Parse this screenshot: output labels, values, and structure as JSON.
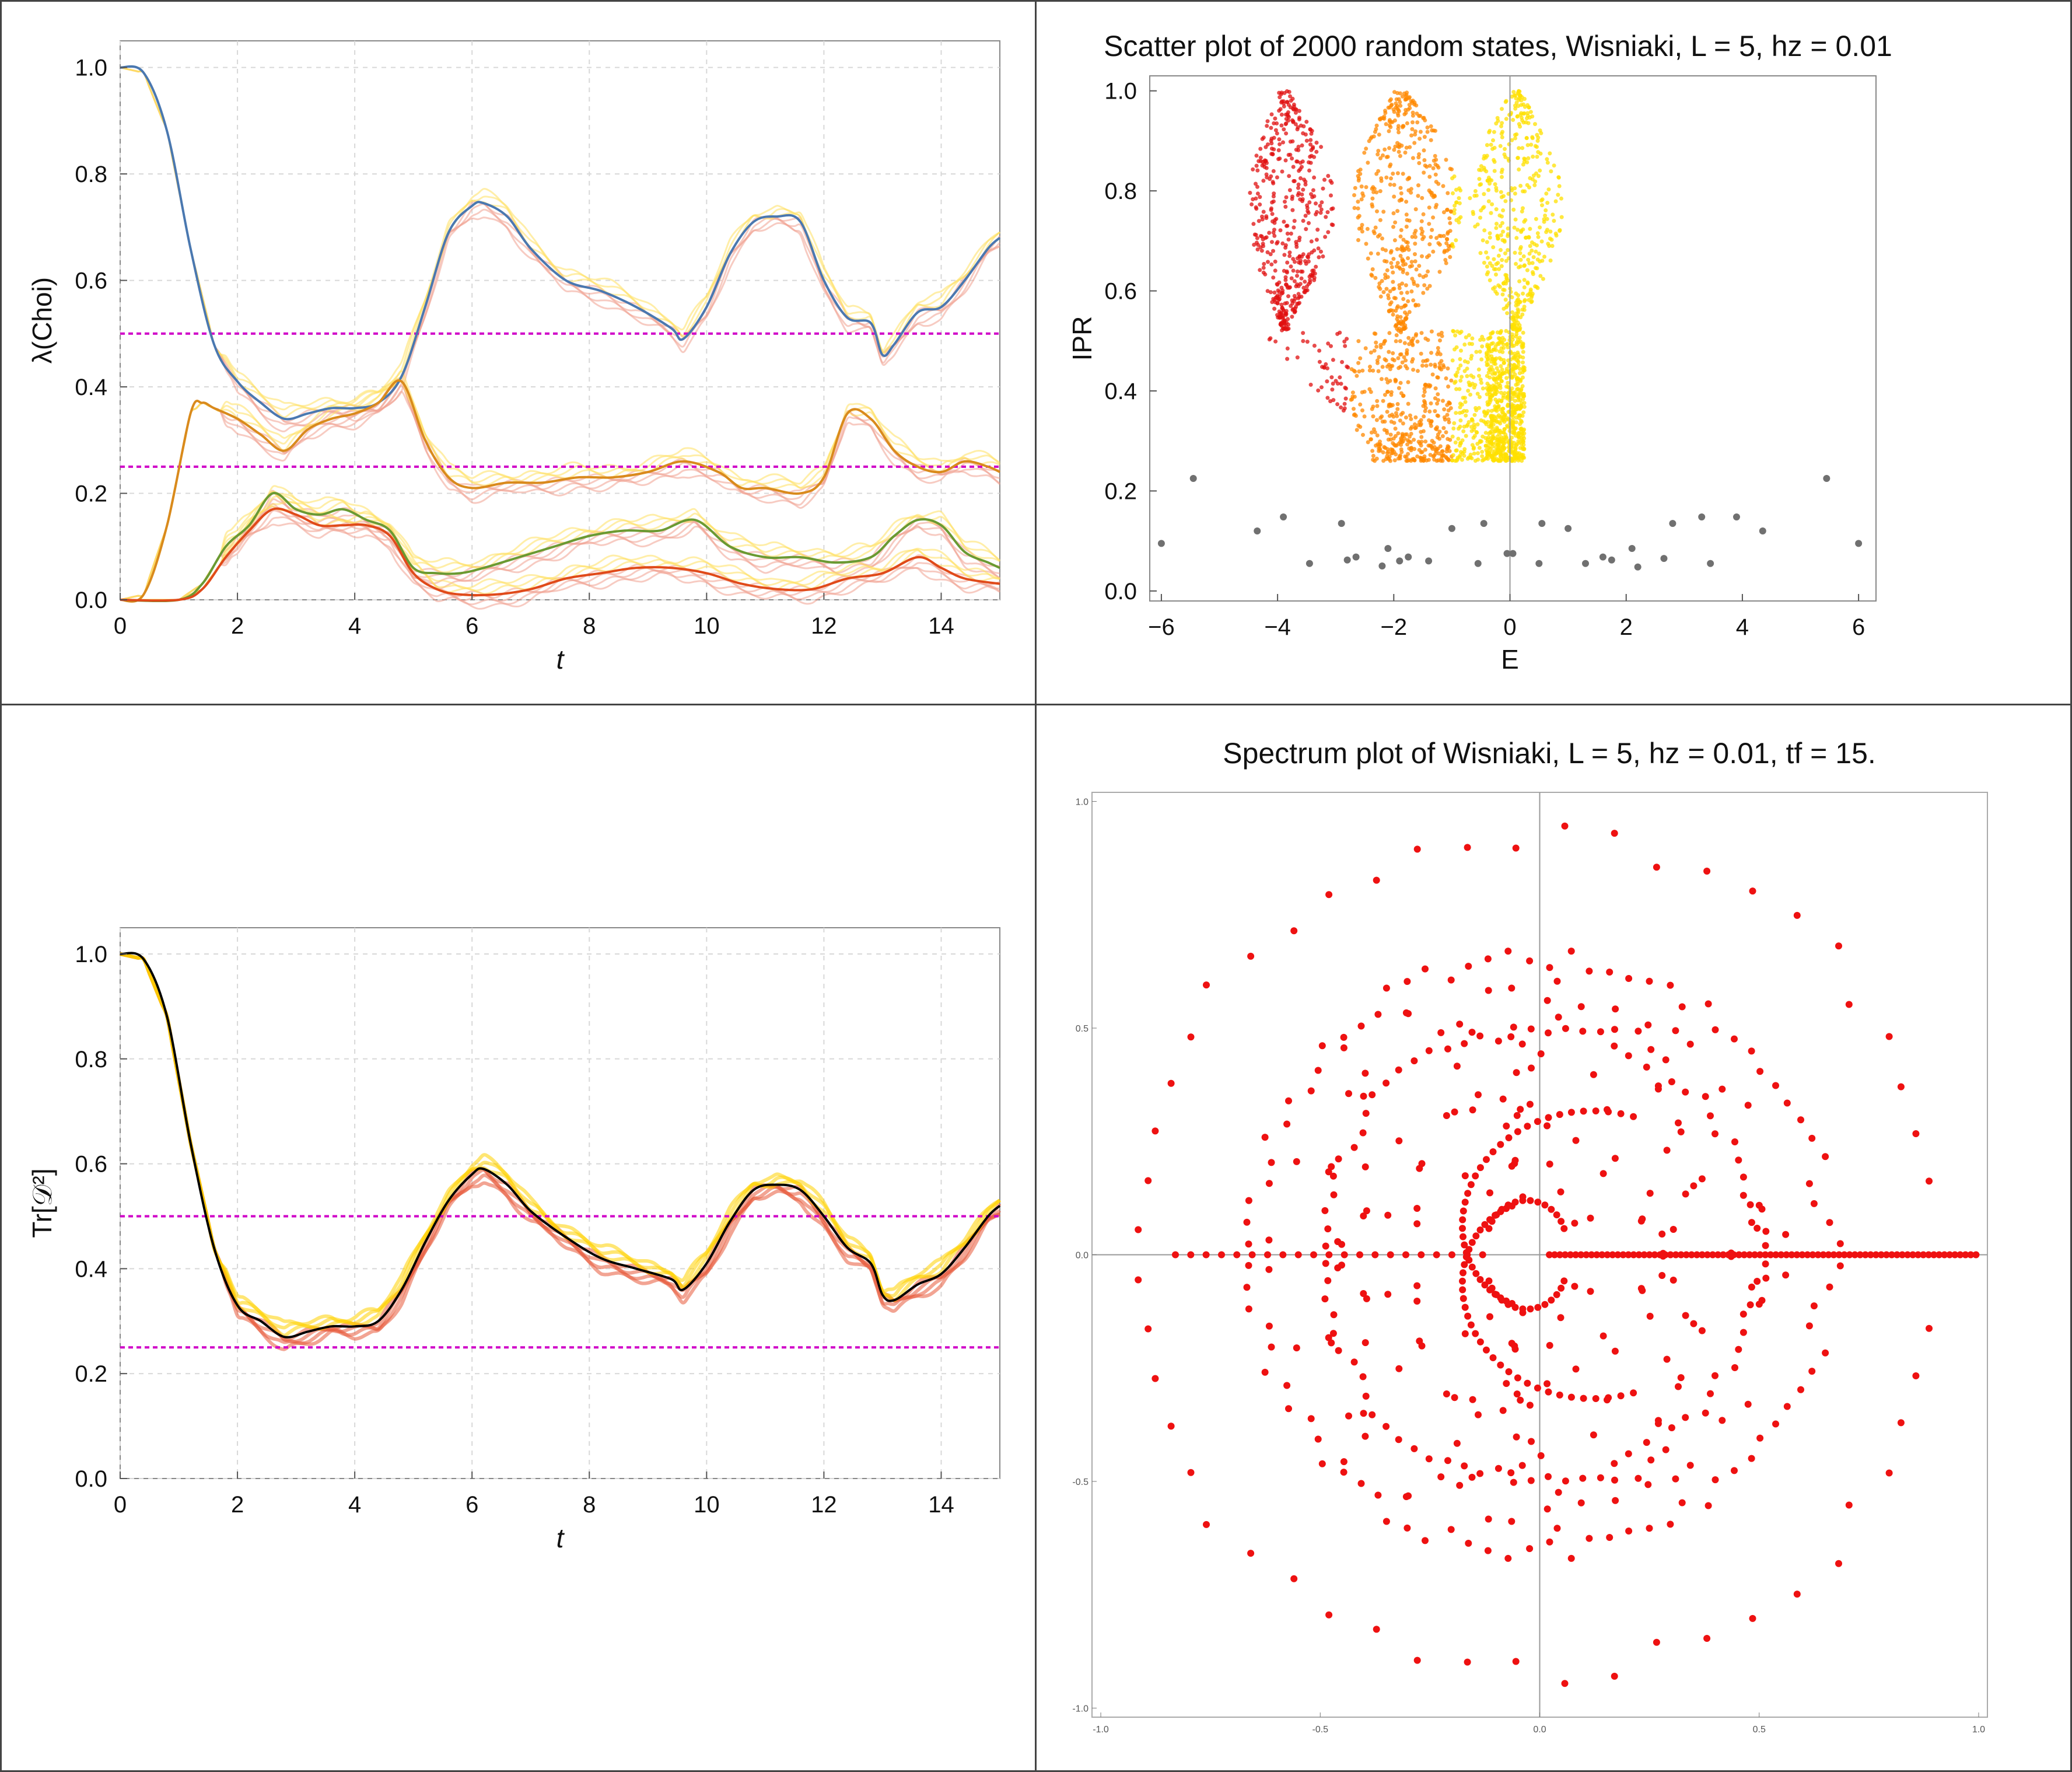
{
  "chart_data": [
    {
      "type": "line",
      "xlabel": "t",
      "ylabel": "λ(Choi)",
      "xlim": [
        0,
        15
      ],
      "ylim": [
        0,
        1.05
      ],
      "xticks": [
        "0",
        "2",
        "4",
        "6",
        "8",
        "10",
        "12",
        "14"
      ],
      "yticks": [
        "0.0",
        "0.2",
        "0.4",
        "0.6",
        "0.8",
        "1.0"
      ],
      "grid": true,
      "reference_lines": [
        0.5,
        0.25
      ],
      "colors": {
        "reference": "#d000c8",
        "band_red": "#f0a090",
        "band_yellow": "#ffe060"
      },
      "series": [
        {
          "color": "#4a78b0",
          "x": [
            0,
            0.4,
            0.8,
            1.2,
            1.6,
            2.0,
            2.4,
            2.8,
            3.2,
            3.6,
            4.0,
            4.4,
            4.8,
            5.2,
            5.6,
            6.0,
            6.2,
            6.6,
            7.0,
            7.6,
            8.2,
            8.8,
            9.4,
            9.6,
            10.0,
            10.4,
            10.8,
            11.2,
            11.6,
            12.0,
            12.4,
            12.8,
            13.0,
            13.2,
            13.6,
            14.0,
            14.4,
            14.8,
            15.0
          ],
          "y": [
            1.0,
            0.99,
            0.88,
            0.66,
            0.48,
            0.41,
            0.37,
            0.34,
            0.35,
            0.36,
            0.36,
            0.37,
            0.42,
            0.55,
            0.69,
            0.74,
            0.745,
            0.72,
            0.66,
            0.6,
            0.58,
            0.55,
            0.51,
            0.49,
            0.55,
            0.65,
            0.71,
            0.72,
            0.71,
            0.6,
            0.53,
            0.52,
            0.46,
            0.48,
            0.54,
            0.55,
            0.6,
            0.66,
            0.68
          ]
        },
        {
          "color": "#d98a1c",
          "x": [
            0,
            0.4,
            0.8,
            1.2,
            1.4,
            1.6,
            2.0,
            2.4,
            2.8,
            3.2,
            3.6,
            4.0,
            4.4,
            4.8,
            5.2,
            5.6,
            6.0,
            6.6,
            7.2,
            7.8,
            8.4,
            9.0,
            9.6,
            10.2,
            10.6,
            11.0,
            11.6,
            12.0,
            12.4,
            12.8,
            13.2,
            13.6,
            14.0,
            14.4,
            14.8,
            15.0
          ],
          "y": [
            0.0,
            0.01,
            0.14,
            0.35,
            0.37,
            0.36,
            0.34,
            0.31,
            0.28,
            0.32,
            0.34,
            0.35,
            0.37,
            0.41,
            0.3,
            0.23,
            0.21,
            0.22,
            0.22,
            0.23,
            0.23,
            0.24,
            0.26,
            0.24,
            0.21,
            0.21,
            0.2,
            0.23,
            0.35,
            0.34,
            0.28,
            0.25,
            0.24,
            0.26,
            0.25,
            0.24
          ]
        },
        {
          "color": "#6a9a32",
          "x": [
            0,
            1.0,
            1.4,
            1.8,
            2.2,
            2.6,
            3.0,
            3.4,
            3.8,
            4.2,
            4.6,
            5.0,
            5.4,
            5.8,
            6.2,
            6.8,
            7.4,
            8.0,
            8.6,
            9.2,
            9.8,
            10.4,
            11.0,
            11.6,
            12.2,
            12.8,
            13.2,
            13.6,
            14.0,
            14.4,
            14.8,
            15.0
          ],
          "y": [
            0.0,
            0.0,
            0.03,
            0.1,
            0.14,
            0.2,
            0.17,
            0.16,
            0.17,
            0.15,
            0.13,
            0.06,
            0.05,
            0.05,
            0.06,
            0.08,
            0.1,
            0.12,
            0.13,
            0.13,
            0.15,
            0.1,
            0.08,
            0.08,
            0.07,
            0.08,
            0.12,
            0.15,
            0.14,
            0.09,
            0.07,
            0.06
          ]
        },
        {
          "color": "#e04a1a",
          "x": [
            0,
            1.0,
            1.4,
            1.8,
            2.2,
            2.6,
            3.0,
            3.4,
            3.8,
            4.2,
            4.6,
            5.0,
            5.4,
            5.8,
            6.4,
            7.0,
            7.6,
            8.2,
            8.8,
            9.4,
            10.0,
            10.6,
            11.2,
            11.8,
            12.4,
            13.0,
            13.6,
            14.0,
            14.4,
            15.0
          ],
          "y": [
            0.0,
            0.0,
            0.02,
            0.08,
            0.13,
            0.17,
            0.16,
            0.14,
            0.14,
            0.14,
            0.12,
            0.05,
            0.02,
            0.01,
            0.01,
            0.02,
            0.04,
            0.05,
            0.06,
            0.06,
            0.05,
            0.03,
            0.02,
            0.02,
            0.04,
            0.05,
            0.08,
            0.06,
            0.04,
            0.03
          ]
        }
      ]
    },
    {
      "type": "scatter",
      "title": "Scatter plot of 2000 random states, Wisniaki, L = 5, hz = 0.01",
      "xlabel": "E",
      "ylabel": "IPR",
      "xlim": [
        -6.2,
        6.3
      ],
      "ylim": [
        -0.02,
        1.03
      ],
      "xticks": [
        "-6",
        "-4",
        "-2",
        "0",
        "2",
        "4",
        "6"
      ],
      "yticks": [
        "0.0",
        "0.2",
        "0.4",
        "0.6",
        "0.8",
        "1.0"
      ],
      "colors": {
        "cloud_high": "#e01010",
        "cloud_mid": "#ff8800",
        "cloud_low": "#ffe000",
        "eigen": "#707070"
      },
      "eigenstates": {
        "x": [
          -6.0,
          -5.45,
          -4.35,
          -3.9,
          -3.45,
          -2.9,
          -2.8,
          -2.65,
          -2.2,
          -2.1,
          -1.9,
          -1.75,
          -1.4,
          -1.0,
          -0.55,
          -0.45,
          -0.05,
          0.05,
          0.55,
          0.5,
          1.0,
          1.3,
          1.6,
          1.75,
          2.1,
          2.2,
          2.65,
          2.8,
          3.3,
          3.45,
          3.9,
          4.35,
          5.45,
          6.0
        ],
        "y": [
          0.095,
          0.225,
          0.12,
          0.148,
          0.055,
          0.135,
          0.062,
          0.068,
          0.05,
          0.085,
          0.06,
          0.068,
          0.06,
          0.125,
          0.055,
          0.135,
          0.075,
          0.075,
          0.135,
          0.055,
          0.125,
          0.055,
          0.068,
          0.062,
          0.085,
          0.048,
          0.065,
          0.135,
          0.148,
          0.055,
          0.148,
          0.12,
          0.225,
          0.095
        ]
      }
    },
    {
      "type": "line",
      "xlabel": "t",
      "ylabel": "Tr[𝒟²]",
      "xlim": [
        0,
        15
      ],
      "ylim": [
        0,
        1.05
      ],
      "xticks": [
        "0",
        "2",
        "4",
        "6",
        "8",
        "10",
        "12",
        "14"
      ],
      "yticks": [
        "0.0",
        "0.2",
        "0.4",
        "0.6",
        "0.8",
        "1.0"
      ],
      "grid": true,
      "reference_lines": [
        0.5,
        0.25
      ],
      "colors": {
        "reference": "#d000c8",
        "mean": "#000000",
        "band_red": "#e85a3a",
        "band_yellow": "#ffd200"
      },
      "series": [
        {
          "color": "#000000",
          "x": [
            0,
            0.4,
            0.8,
            1.2,
            1.6,
            2.0,
            2.4,
            2.8,
            3.2,
            3.6,
            4.0,
            4.4,
            4.8,
            5.2,
            5.6,
            6.0,
            6.2,
            6.6,
            7.0,
            7.6,
            8.2,
            8.8,
            9.4,
            9.6,
            10.0,
            10.4,
            10.8,
            11.2,
            11.6,
            12.0,
            12.4,
            12.8,
            13.0,
            13.2,
            13.6,
            14.0,
            14.4,
            14.8,
            15.0
          ],
          "y": [
            1.0,
            0.99,
            0.88,
            0.64,
            0.44,
            0.33,
            0.3,
            0.27,
            0.28,
            0.29,
            0.29,
            0.3,
            0.36,
            0.45,
            0.53,
            0.58,
            0.59,
            0.56,
            0.51,
            0.46,
            0.42,
            0.4,
            0.38,
            0.36,
            0.41,
            0.49,
            0.55,
            0.56,
            0.55,
            0.5,
            0.44,
            0.41,
            0.35,
            0.34,
            0.37,
            0.39,
            0.44,
            0.5,
            0.52
          ]
        }
      ]
    },
    {
      "type": "scatter",
      "title": "Spectrum plot of Wisniaki, L = 5, hz = 0.01, tf = 15.",
      "xlim": [
        -1.02,
        1.02
      ],
      "ylim": [
        -1.02,
        1.02
      ],
      "xticks": [
        "-1.0",
        "-0.5",
        "0.0",
        "0.5",
        "1.0"
      ],
      "yticks": [
        "-1.0",
        "-0.5",
        "0.0",
        "0.5",
        "1.0"
      ],
      "colors": {
        "points": "#ee1111"
      }
    }
  ]
}
